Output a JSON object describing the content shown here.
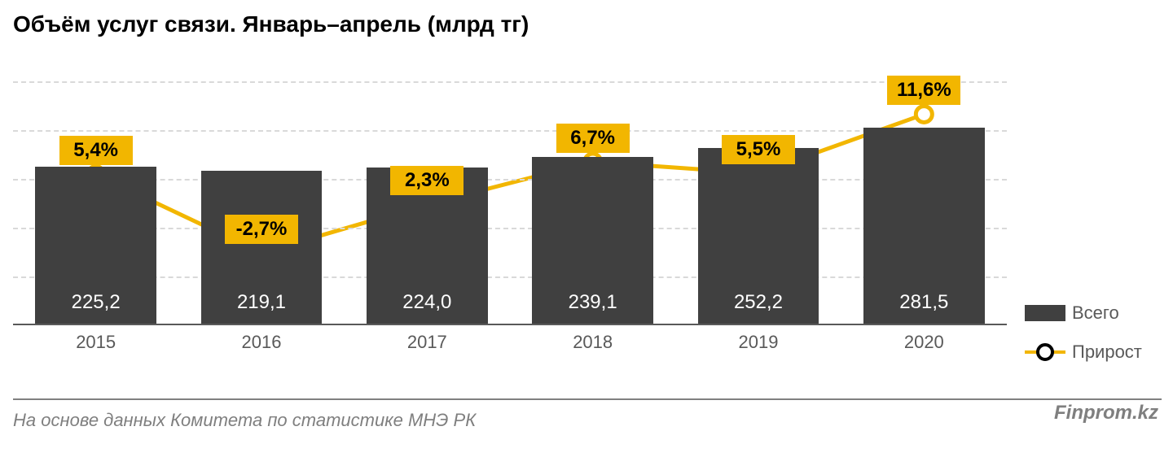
{
  "title": "Объём услуг связи.  Январь–апрель (млрд тг)",
  "title_fontsize": 28,
  "chart": {
    "type": "bar+line",
    "categories": [
      "2015",
      "2016",
      "2017",
      "2018",
      "2019",
      "2020"
    ],
    "bar_values": [
      225.2,
      219.1,
      224.0,
      239.1,
      252.2,
      281.5
    ],
    "bar_value_labels": [
      "225,2",
      "219,1",
      "224,0",
      "239,1",
      "252,2",
      "281,5"
    ],
    "line_values": [
      5.4,
      -2.7,
      2.3,
      6.7,
      5.5,
      11.6
    ],
    "line_value_labels": [
      "5,4%",
      "-2,7%",
      "2,3%",
      "6,7%",
      "5,5%",
      "11,6%"
    ],
    "bar_color": "#404040",
    "bar_width_ratio": 0.73,
    "value_label_color": "#ffffff",
    "value_label_fontsize": 24,
    "xlabel_fontsize": 22,
    "xlabel_color": "#595959",
    "line_color": "#f2b600",
    "line_width": 5,
    "marker_fill": "#ffffff",
    "marker_stroke": "#f2b600",
    "marker_stroke_width": 5,
    "marker_radius": 10,
    "pct_label_bg": "#f2b600",
    "pct_label_color": "#000000",
    "pct_label_fontsize": 24,
    "grid_color": "#d9d9d9",
    "axis_color": "#595959",
    "background": "#ffffff",
    "y_bar_min": 0,
    "y_bar_max": 350,
    "y_line_min": -10,
    "y_line_max": 15,
    "grid_lines": 5
  },
  "legend": {
    "items": [
      {
        "type": "box",
        "label": "Всего",
        "color": "#404040"
      },
      {
        "type": "line",
        "label": "Прирост",
        "color": "#f2b600"
      }
    ],
    "fontsize": 22,
    "text_color": "#595959"
  },
  "source": "На основе данных Комитета по статистике МНЭ РК",
  "source_fontsize": 22,
  "watermark": "Finprom.kz",
  "watermark_fontsize": 24
}
